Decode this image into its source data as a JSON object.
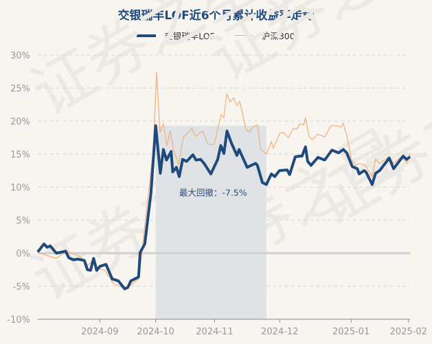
{
  "chart_data": {
    "type": "line",
    "title": "交银瑞丰LOF近6个月累计收益率走势",
    "xlabel": "",
    "ylabel": "",
    "x_unit": "trading-day index",
    "xlim": [
      0,
      120
    ],
    "ylim": [
      -10,
      30
    ],
    "yticks": [
      30,
      25,
      20,
      15,
      10,
      5,
      0,
      -5,
      -10
    ],
    "ytick_labels": [
      "30%",
      "25%",
      "20%",
      "15%",
      "10%",
      "5%",
      "0%",
      "-5%",
      "-10%"
    ],
    "xticks": [
      {
        "x": 20,
        "label": "2024-09"
      },
      {
        "x": 38,
        "label": "2024-10"
      },
      {
        "x": 57,
        "label": "2024-11"
      },
      {
        "x": 78,
        "label": "2024-12"
      },
      {
        "x": 101,
        "label": "2025-01"
      },
      {
        "x": 119.5,
        "label": "2025-02"
      }
    ],
    "grid": true,
    "legend_position": "top-center",
    "series": [
      {
        "name": "交银瑞丰LOF",
        "color": "#1f4a7c",
        "points": [
          [
            0,
            0.2
          ],
          [
            2,
            1.4
          ],
          [
            3,
            0.9
          ],
          [
            4,
            1.1
          ],
          [
            6,
            0.0
          ],
          [
            9,
            0.3
          ],
          [
            10,
            -0.7
          ],
          [
            11.5,
            -1.0
          ],
          [
            13,
            -0.9
          ],
          [
            15,
            -1.1
          ],
          [
            16,
            -2.5
          ],
          [
            17,
            -2.6
          ],
          [
            18,
            -0.8
          ],
          [
            19,
            -2.6
          ],
          [
            20,
            -2.0
          ],
          [
            22,
            -1.7
          ],
          [
            24,
            -3.9
          ],
          [
            26,
            -4.2
          ],
          [
            28,
            -5.4
          ],
          [
            29,
            -5.2
          ],
          [
            30,
            -4.2
          ],
          [
            32.5,
            -3.6
          ],
          [
            33,
            0.1
          ],
          [
            34.5,
            1.4
          ],
          [
            36.5,
            9.2
          ],
          [
            38,
            19.3
          ],
          [
            39.5,
            12.1
          ],
          [
            40.5,
            15.7
          ],
          [
            41.5,
            14.1
          ],
          [
            43,
            15.4
          ],
          [
            43.5,
            12.3
          ],
          [
            44.7,
            13.0
          ],
          [
            45.6,
            11.6
          ],
          [
            46.7,
            14.2
          ],
          [
            48,
            13.9
          ],
          [
            50,
            14.9
          ],
          [
            51,
            14.1
          ],
          [
            52.5,
            14.2
          ],
          [
            53.6,
            13.6
          ],
          [
            55.8,
            12.0
          ],
          [
            58,
            14.2
          ],
          [
            59,
            16.3
          ],
          [
            60,
            15.1
          ],
          [
            61,
            18.5
          ],
          [
            62.4,
            16.7
          ],
          [
            64.2,
            14.8
          ],
          [
            64.9,
            15.7
          ],
          [
            67.5,
            13.0
          ],
          [
            70.2,
            13.6
          ],
          [
            70.8,
            13.3
          ],
          [
            72.4,
            10.7
          ],
          [
            73.7,
            10.4
          ],
          [
            75.3,
            12.0
          ],
          [
            76.4,
            11.6
          ],
          [
            77.9,
            12.5
          ],
          [
            80.4,
            12.6
          ],
          [
            81.2,
            11.9
          ],
          [
            83,
            14.6
          ],
          [
            84.6,
            14.7
          ],
          [
            85.2,
            14.7
          ],
          [
            86.3,
            16.1
          ],
          [
            87,
            13.9
          ],
          [
            88.1,
            13.3
          ],
          [
            90.3,
            14.5
          ],
          [
            92.5,
            14.1
          ],
          [
            94.8,
            15.6
          ],
          [
            97,
            15.2
          ],
          [
            98.5,
            15.7
          ],
          [
            99.6,
            15.2
          ],
          [
            101.4,
            13.1
          ],
          [
            103,
            12.8
          ],
          [
            103.6,
            12.0
          ],
          [
            105.2,
            12.5
          ],
          [
            105.8,
            12.3
          ],
          [
            107.8,
            10.4
          ],
          [
            108.9,
            12.1
          ],
          [
            110.2,
            12.5
          ],
          [
            113.3,
            14.4
          ],
          [
            114.7,
            12.8
          ],
          [
            117.8,
            14.7
          ],
          [
            118.9,
            14.2
          ],
          [
            120,
            14.6
          ]
        ]
      },
      {
        "name": "沪深300",
        "color": "#f0b27e",
        "points": [
          [
            0,
            0.1
          ],
          [
            3.3,
            -0.4
          ],
          [
            6,
            -0.8
          ],
          [
            9,
            0.3
          ],
          [
            13.7,
            -0.5
          ],
          [
            16.2,
            -1.8
          ],
          [
            18,
            -1.0
          ],
          [
            19,
            -2.3
          ],
          [
            21.7,
            -2.6
          ],
          [
            24.4,
            -4.6
          ],
          [
            28.3,
            -5.4
          ],
          [
            32.5,
            -3.9
          ],
          [
            33.6,
            0.3
          ],
          [
            37.2,
            15.4
          ],
          [
            38.3,
            27.4
          ],
          [
            39.4,
            18.3
          ],
          [
            40.5,
            19.6
          ],
          [
            41.6,
            16.3
          ],
          [
            42.7,
            18.5
          ],
          [
            43.8,
            15.6
          ],
          [
            45.4,
            13.4
          ],
          [
            46.9,
            17.5
          ],
          [
            49.6,
            18.9
          ],
          [
            50.9,
            17.7
          ],
          [
            53.1,
            18.5
          ],
          [
            54.9,
            16.5
          ],
          [
            56.9,
            16.5
          ],
          [
            59.1,
            21.0
          ],
          [
            60,
            20.5
          ],
          [
            60.9,
            24.1
          ],
          [
            62,
            22.9
          ],
          [
            63.1,
            23.5
          ],
          [
            64.2,
            22.4
          ],
          [
            65.1,
            23.0
          ],
          [
            67.1,
            18.8
          ],
          [
            68.2,
            18.3
          ],
          [
            69.3,
            19.1
          ],
          [
            70.8,
            19.4
          ],
          [
            71.9,
            15.7
          ],
          [
            73.7,
            15.0
          ],
          [
            75.3,
            16.9
          ],
          [
            75.9,
            15.9
          ],
          [
            78.1,
            18.2
          ],
          [
            79.2,
            18.3
          ],
          [
            80.8,
            17.5
          ],
          [
            82.4,
            18.9
          ],
          [
            83.5,
            18.8
          ],
          [
            84.6,
            19.6
          ],
          [
            85.7,
            19.4
          ],
          [
            86.3,
            20.5
          ],
          [
            87.5,
            17.6
          ],
          [
            88.5,
            17.2
          ],
          [
            90.3,
            18.0
          ],
          [
            92.5,
            17.6
          ],
          [
            94.5,
            19.3
          ],
          [
            96.3,
            19.3
          ],
          [
            97.9,
            19.1
          ],
          [
            98.5,
            19.7
          ],
          [
            99.6,
            17.8
          ],
          [
            101.2,
            14.1
          ],
          [
            102.5,
            13.3
          ],
          [
            103.6,
            13.6
          ],
          [
            105.6,
            13.3
          ],
          [
            107.8,
            11.6
          ],
          [
            108.9,
            14.3
          ],
          [
            110,
            13.6
          ],
          [
            113.3,
            14.6
          ],
          [
            114.7,
            13.6
          ],
          [
            117.4,
            14.7
          ],
          [
            118.9,
            13.6
          ],
          [
            120,
            15.0
          ]
        ]
      }
    ],
    "max_drawdown": {
      "label": "最大回撤：-7.5%",
      "start_x": 38,
      "end_x": 73.7,
      "label_y": 9.2
    },
    "watermark": "证券之星"
  }
}
